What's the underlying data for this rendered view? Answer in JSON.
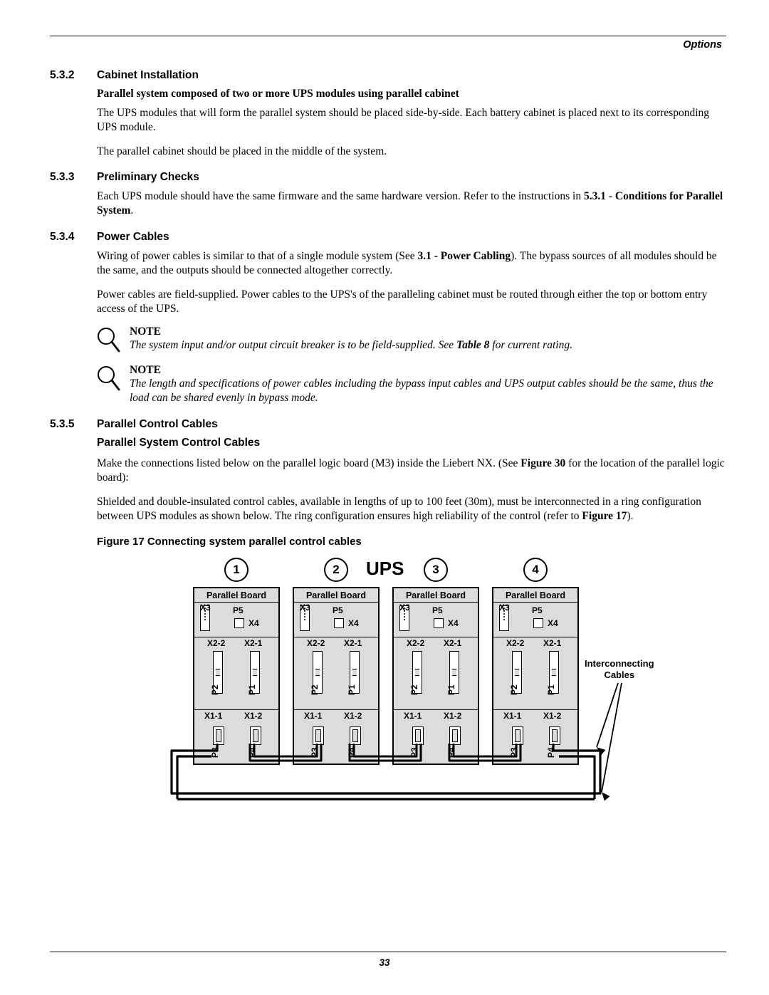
{
  "page": {
    "header_right": "Options",
    "page_number": "33",
    "colors": {
      "text": "#000000",
      "bg": "#ffffff",
      "board_fill": "#dcdcdc"
    }
  },
  "s532": {
    "num": "5.3.2",
    "title": "Cabinet Installation",
    "sub": "Parallel system composed of two or more UPS modules using parallel cabinet",
    "p1": "The UPS modules that will form the parallel system should be placed side-by-side. Each battery cabinet is placed next to its corresponding UPS module.",
    "p2": "The parallel cabinet should be placed in the middle of the system."
  },
  "s533": {
    "num": "5.3.3",
    "title": "Preliminary Checks",
    "p1_a": "Each UPS module should have the same firmware and the same hardware version. Refer to the instructions in ",
    "p1_b": "5.3.1 - Conditions for Parallel System",
    "p1_c": "."
  },
  "s534": {
    "num": "5.3.4",
    "title": "Power Cables",
    "p1_a": "Wiring of power cables is similar to that of a single module system (See ",
    "p1_b": "3.1 - Power Cabling",
    "p1_c": "). The bypass sources of all modules should be the same, and the outputs should be connected altogether correctly.",
    "p2": "Power cables are field-supplied. Power cables to the UPS's of the paralleling cabinet must be routed through either the top or bottom entry access of the UPS."
  },
  "note1": {
    "title": "NOTE",
    "body_a": "The system input and/or output circuit breaker is to be field-supplied. See ",
    "body_b": "Table 8",
    "body_c": " for current rating."
  },
  "note2": {
    "title": "NOTE",
    "body": "The length and specifications of power cables including the bypass input cables and UPS output cables should be the same, thus the load can be shared evenly in bypass mode."
  },
  "s535": {
    "num": "5.3.5",
    "title": "Parallel Control Cables",
    "sub": "Parallel System Control Cables",
    "p1_a": "Make the connections listed below on the parallel logic board (M3) inside the Liebert NX. (See ",
    "p1_b": "Figure 30",
    "p1_c": " for the location of the parallel logic board):",
    "p2_a": "Shielded and double-insulated control cables, available in lengths of up to 100 feet (30m), must be interconnected in a ring configuration between UPS modules as shown below. The ring configuration ensures high reliability of the control (refer to ",
    "p2_b": "Figure 17",
    "p2_c": ")."
  },
  "figure17": {
    "caption": "Figure 17  Connecting system parallel control cables",
    "ups_label": "UPS",
    "interconnect_label_1": "Interconnecting",
    "interconnect_label_2": "Cables",
    "boards": {
      "title": "Parallel Board",
      "count": 4,
      "x_positions": [
        135,
        275,
        415,
        555
      ],
      "circle_labels": [
        "1",
        "2",
        "3",
        "4"
      ],
      "port_labels": {
        "X3": "X3",
        "P5": "P5",
        "X4": "X4",
        "X2_2": "X2-2",
        "X2_1": "X2-1",
        "P2": "P2",
        "P1": "P1",
        "X1_1": "X1-1",
        "X1_2": "X1-2",
        "P3": "P3",
        "P4": "P4"
      }
    }
  }
}
